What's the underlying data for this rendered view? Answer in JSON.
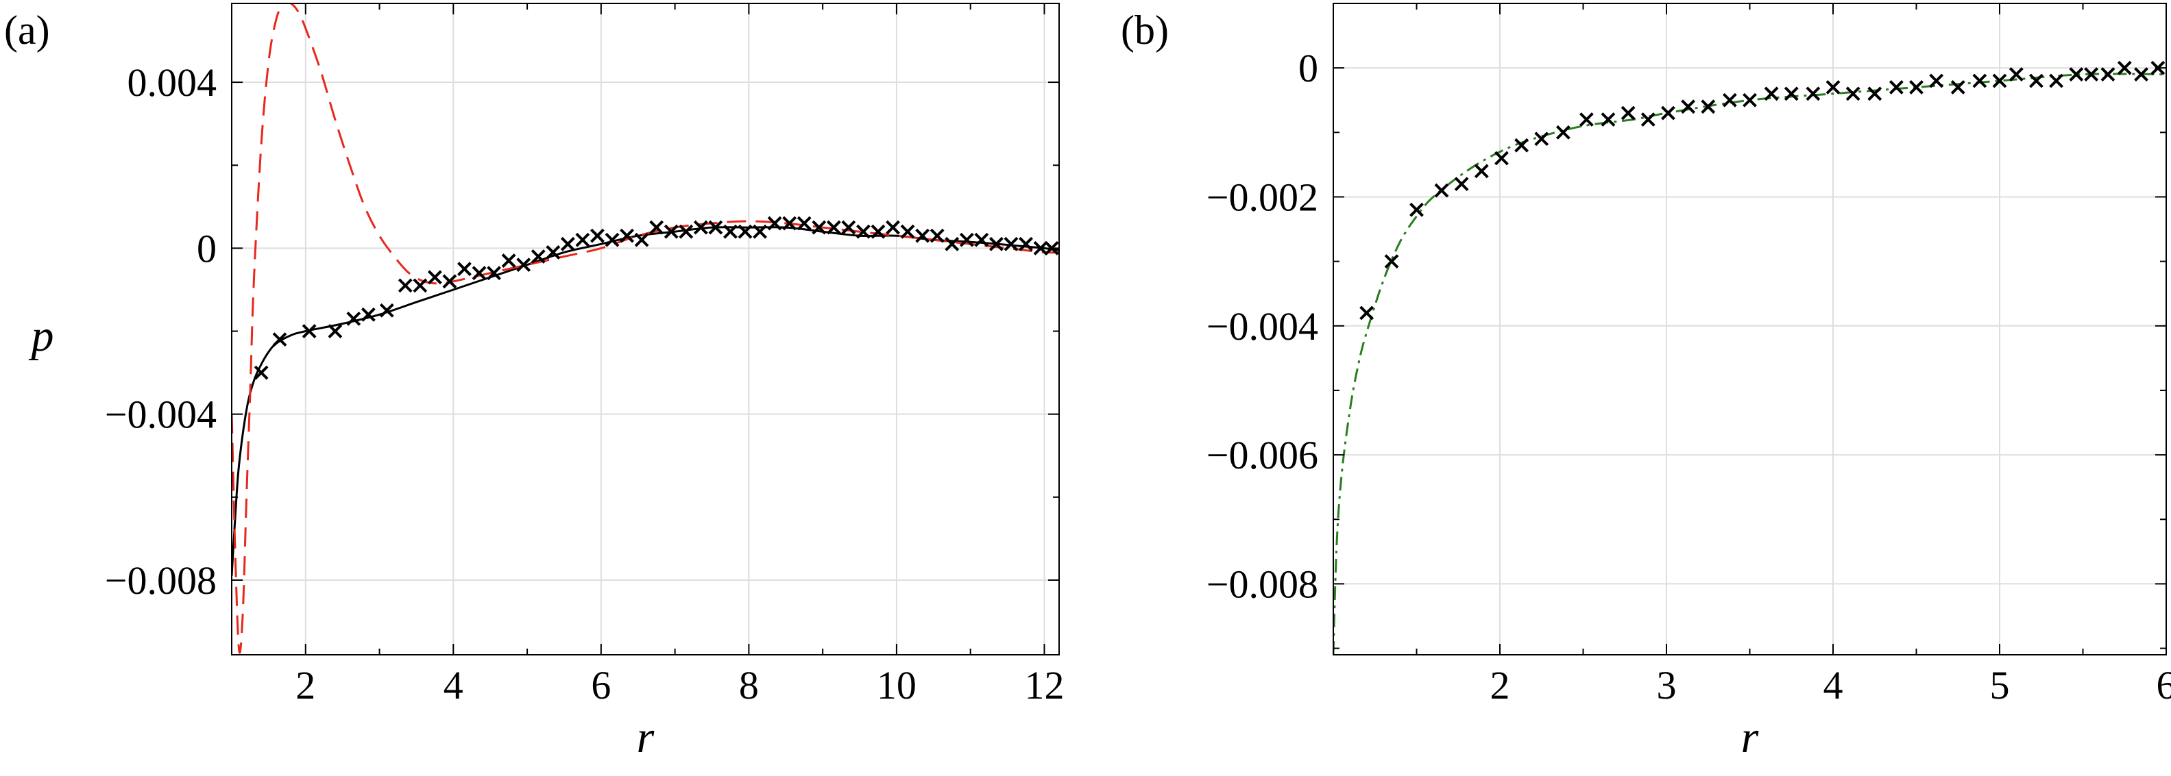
{
  "chart_data": [
    {
      "type": "line",
      "panel_label": "(a)",
      "xlabel": "r",
      "ylabel": "p",
      "xlim": [
        1,
        12.2
      ],
      "ylim": [
        -0.0098,
        0.0059
      ],
      "xticks": [
        2,
        4,
        6,
        8,
        10,
        12
      ],
      "xtick_labels": [
        "2",
        "4",
        "6",
        "8",
        "10",
        "12"
      ],
      "yticks": [
        -0.008,
        -0.004,
        0,
        0.004
      ],
      "ytick_labels": [
        "−0.008",
        "−0.004",
        "0",
        "0.004"
      ],
      "grid": true,
      "series": [
        {
          "style": "solid",
          "color": "#000000",
          "x": [
            1.0,
            1.05,
            1.1,
            1.2,
            1.3,
            1.4,
            1.5,
            1.6,
            1.8,
            2.0,
            2.5,
            3.0,
            3.5,
            4.0,
            4.5,
            5.0,
            5.5,
            6.0,
            6.5,
            7.0,
            7.5,
            8.0,
            8.5,
            9.0,
            9.5,
            10.0,
            10.5,
            11.0,
            11.5,
            12.0,
            12.2
          ],
          "y": [
            -0.0079,
            -0.0064,
            -0.0052,
            -0.0039,
            -0.0032,
            -0.0028,
            -0.0025,
            -0.0023,
            -0.0021,
            -0.002,
            -0.00182,
            -0.0016,
            -0.0013,
            -0.001,
            -0.0007,
            -0.0004,
            -0.0001,
            0.0001,
            0.0003,
            0.0004,
            0.0005,
            0.0005,
            0.0005,
            0.0004,
            0.0003,
            0.0003,
            0.0002,
            0.00015,
            8e-05,
            0.0,
            -5e-05
          ]
        },
        {
          "style": "dashed",
          "color": "#e8271d",
          "x": [
            1.0,
            1.05,
            1.1,
            1.15,
            1.2,
            1.25,
            1.3,
            1.4,
            1.5,
            1.6,
            1.7,
            1.8,
            1.9,
            2.0,
            2.2,
            2.4,
            2.6,
            2.8,
            3.0,
            3.2,
            3.4,
            3.6,
            3.8,
            4.0,
            4.5,
            5.0,
            5.5,
            6.0,
            6.5,
            7.0,
            7.5,
            8.0,
            8.5,
            9.0,
            9.5,
            10.0,
            10.5,
            11.0,
            11.5,
            12.0,
            12.2
          ],
          "y": [
            -0.004,
            -0.0075,
            -0.0097,
            -0.0088,
            -0.006,
            -0.0035,
            -0.0008,
            0.0025,
            0.0045,
            0.0055,
            0.0059,
            0.0059,
            0.0057,
            0.0053,
            0.0043,
            0.0031,
            0.002,
            0.001,
            0.0003,
            -0.0002,
            -0.0006,
            -0.0008,
            -0.00085,
            -0.0008,
            -0.0006,
            -0.0004,
            -0.0002,
            0.0,
            0.0003,
            0.0005,
            0.0006,
            0.00065,
            0.0006,
            0.0005,
            0.0004,
            0.0003,
            0.0002,
            0.0001,
            0.0,
            -0.0001,
            -0.0001
          ]
        },
        {
          "style": "markers",
          "marker": "x",
          "color": "#000000",
          "x": [
            1.4,
            1.65,
            2.05,
            2.4,
            2.65,
            2.85,
            3.1,
            3.35,
            3.55,
            3.75,
            3.95,
            4.15,
            4.35,
            4.55,
            4.75,
            4.95,
            5.15,
            5.35,
            5.55,
            5.75,
            5.95,
            6.15,
            6.35,
            6.55,
            6.75,
            6.95,
            7.15,
            7.35,
            7.55,
            7.75,
            7.95,
            8.15,
            8.35,
            8.55,
            8.75,
            8.95,
            9.15,
            9.35,
            9.55,
            9.75,
            9.95,
            10.15,
            10.35,
            10.55,
            10.75,
            10.95,
            11.15,
            11.35,
            11.55,
            11.75,
            11.95,
            12.1
          ],
          "y": [
            -0.003,
            -0.0022,
            -0.002,
            -0.002,
            -0.0017,
            -0.0016,
            -0.0015,
            -0.0009,
            -0.0009,
            -0.0007,
            -0.0008,
            -0.0005,
            -0.0006,
            -0.0006,
            -0.0003,
            -0.0004,
            -0.0002,
            -0.0001,
            0.0001,
            0.0002,
            0.0003,
            0.0002,
            0.0003,
            0.0002,
            0.0005,
            0.0004,
            0.0004,
            0.0005,
            0.0005,
            0.0004,
            0.0004,
            0.0004,
            0.0006,
            0.0006,
            0.0006,
            0.0005,
            0.0005,
            0.0005,
            0.0004,
            0.0004,
            0.0005,
            0.0004,
            0.0003,
            0.0003,
            0.0001,
            0.0002,
            0.0002,
            0.0001,
            0.0001,
            0.0001,
            0.0,
            0.0
          ]
        }
      ]
    },
    {
      "type": "line",
      "panel_label": "(b)",
      "xlabel": "r",
      "ylabel": "",
      "xlim": [
        1,
        6
      ],
      "ylim": [
        -0.0091,
        0.001
      ],
      "xticks": [
        2,
        3,
        4,
        5,
        6
      ],
      "xtick_labels": [
        "2",
        "3",
        "4",
        "5",
        "6"
      ],
      "yticks": [
        -0.008,
        -0.006,
        -0.004,
        -0.002,
        0
      ],
      "ytick_labels": [
        "−0.008",
        "−0.006",
        "−0.004",
        "−0.002",
        "0"
      ],
      "grid": true,
      "series": [
        {
          "style": "dashdot",
          "color": "#2a7d1f",
          "x": [
            1.0,
            1.02,
            1.05,
            1.1,
            1.15,
            1.2,
            1.3,
            1.4,
            1.5,
            1.6,
            1.8,
            2.0,
            2.2,
            2.5,
            2.8,
            3.0,
            3.5,
            4.0,
            4.5,
            5.0,
            5.5,
            6.0
          ],
          "y": [
            -0.0091,
            -0.0074,
            -0.0063,
            -0.0053,
            -0.0046,
            -0.0041,
            -0.0033,
            -0.0027,
            -0.0023,
            -0.002,
            -0.0016,
            -0.0013,
            -0.0011,
            -0.0009,
            -0.0008,
            -0.0007,
            -0.0005,
            -0.0004,
            -0.0003,
            -0.0002,
            -0.0001,
            -0.0001
          ]
        },
        {
          "style": "markers",
          "marker": "x",
          "color": "#000000",
          "x": [
            1.2,
            1.35,
            1.5,
            1.65,
            1.77,
            1.89,
            2.01,
            2.13,
            2.25,
            2.38,
            2.52,
            2.65,
            2.77,
            2.89,
            3.01,
            3.13,
            3.25,
            3.38,
            3.5,
            3.63,
            3.75,
            3.88,
            4.0,
            4.12,
            4.25,
            4.38,
            4.5,
            4.62,
            4.75,
            4.88,
            5.0,
            5.1,
            5.22,
            5.34,
            5.46,
            5.55,
            5.65,
            5.75,
            5.85,
            5.95
          ],
          "y": [
            -0.0038,
            -0.003,
            -0.0022,
            -0.0019,
            -0.0018,
            -0.0016,
            -0.0014,
            -0.0012,
            -0.0011,
            -0.001,
            -0.0008,
            -0.0008,
            -0.0007,
            -0.0008,
            -0.0007,
            -0.0006,
            -0.0006,
            -0.0005,
            -0.0005,
            -0.0004,
            -0.0004,
            -0.0004,
            -0.0003,
            -0.0004,
            -0.0004,
            -0.0003,
            -0.0003,
            -0.0002,
            -0.0003,
            -0.0002,
            -0.0002,
            -0.0001,
            -0.0002,
            -0.0002,
            -0.0001,
            -0.0001,
            -0.0001,
            0.0,
            -0.0001,
            0.0
          ]
        }
      ]
    }
  ]
}
